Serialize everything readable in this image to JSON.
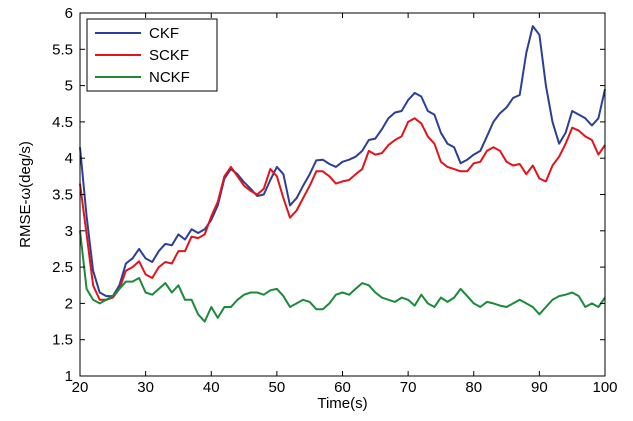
{
  "chart_data": {
    "type": "line",
    "xlabel": "Time(s)",
    "ylabel": "RMSE-ω(deg/s)",
    "xlim": [
      20,
      100
    ],
    "ylim": [
      1,
      6
    ],
    "xticks": [
      20,
      30,
      40,
      50,
      60,
      70,
      80,
      90,
      100
    ],
    "yticks": [
      1,
      1.5,
      2,
      2.5,
      3,
      3.5,
      4,
      4.5,
      5,
      5.5,
      6
    ],
    "grid": false,
    "legend_position": "top-left",
    "series": [
      {
        "name": "CKF",
        "color": "#2b3f97",
        "x": [
          20,
          21,
          22,
          23,
          24,
          25,
          26,
          27,
          28,
          29,
          30,
          31,
          32,
          33,
          34,
          35,
          36,
          37,
          38,
          39,
          40,
          41,
          42,
          43,
          44,
          45,
          46,
          47,
          48,
          49,
          50,
          51,
          52,
          53,
          54,
          55,
          56,
          57,
          58,
          59,
          60,
          61,
          62,
          63,
          64,
          65,
          66,
          67,
          68,
          69,
          70,
          71,
          72,
          73,
          74,
          75,
          76,
          77,
          78,
          79,
          80,
          81,
          82,
          83,
          84,
          85,
          86,
          87,
          88,
          89,
          90,
          91,
          92,
          93,
          94,
          95,
          96,
          97,
          98,
          99,
          100
        ],
        "values": [
          4.15,
          3.2,
          2.45,
          2.15,
          2.1,
          2.1,
          2.25,
          2.55,
          2.62,
          2.75,
          2.62,
          2.57,
          2.72,
          2.82,
          2.8,
          2.95,
          2.88,
          3.02,
          2.97,
          3.02,
          3.15,
          3.35,
          3.72,
          3.85,
          3.78,
          3.67,
          3.58,
          3.48,
          3.5,
          3.7,
          3.88,
          3.78,
          3.35,
          3.45,
          3.62,
          3.78,
          3.97,
          3.98,
          3.92,
          3.88,
          3.95,
          3.98,
          4.02,
          4.1,
          4.25,
          4.27,
          4.4,
          4.55,
          4.63,
          4.65,
          4.8,
          4.9,
          4.85,
          4.65,
          4.6,
          4.35,
          4.2,
          4.15,
          3.93,
          3.98,
          4.05,
          4.1,
          4.3,
          4.5,
          4.62,
          4.7,
          4.83,
          4.87,
          5.45,
          5.82,
          5.7,
          5.0,
          4.5,
          4.2,
          4.35,
          4.65,
          4.6,
          4.55,
          4.45,
          4.55,
          4.95
        ]
      },
      {
        "name": "SCKF",
        "color": "#e2141b",
        "x": [
          20,
          21,
          22,
          23,
          24,
          25,
          26,
          27,
          28,
          29,
          30,
          31,
          32,
          33,
          34,
          35,
          36,
          37,
          38,
          39,
          40,
          41,
          42,
          43,
          44,
          45,
          46,
          47,
          48,
          49,
          50,
          51,
          52,
          53,
          54,
          55,
          56,
          57,
          58,
          59,
          60,
          61,
          62,
          63,
          64,
          65,
          66,
          67,
          68,
          69,
          70,
          71,
          72,
          73,
          74,
          75,
          76,
          77,
          78,
          79,
          80,
          81,
          82,
          83,
          84,
          85,
          86,
          87,
          88,
          89,
          90,
          91,
          92,
          93,
          94,
          95,
          96,
          97,
          98,
          99,
          100
        ],
        "values": [
          3.65,
          2.95,
          2.25,
          2.05,
          2.05,
          2.08,
          2.2,
          2.45,
          2.5,
          2.58,
          2.4,
          2.35,
          2.5,
          2.57,
          2.55,
          2.72,
          2.72,
          2.92,
          2.9,
          2.95,
          3.2,
          3.4,
          3.75,
          3.88,
          3.75,
          3.62,
          3.55,
          3.5,
          3.58,
          3.85,
          3.75,
          3.45,
          3.18,
          3.28,
          3.45,
          3.62,
          3.82,
          3.82,
          3.75,
          3.65,
          3.68,
          3.7,
          3.78,
          3.85,
          4.1,
          4.05,
          4.07,
          4.18,
          4.25,
          4.3,
          4.5,
          4.55,
          4.48,
          4.3,
          4.2,
          3.95,
          3.88,
          3.85,
          3.82,
          3.82,
          3.93,
          3.95,
          4.1,
          4.15,
          4.1,
          3.95,
          3.9,
          3.92,
          3.78,
          3.9,
          3.72,
          3.68,
          3.9,
          4.02,
          4.2,
          4.42,
          4.38,
          4.3,
          4.25,
          4.05,
          4.18
        ]
      },
      {
        "name": "NCKF",
        "color": "#1b8a3a",
        "x": [
          20,
          21,
          22,
          23,
          24,
          25,
          26,
          27,
          28,
          29,
          30,
          31,
          32,
          33,
          34,
          35,
          36,
          37,
          38,
          39,
          40,
          41,
          42,
          43,
          44,
          45,
          46,
          47,
          48,
          49,
          50,
          51,
          52,
          53,
          54,
          55,
          56,
          57,
          58,
          59,
          60,
          61,
          62,
          63,
          64,
          65,
          66,
          67,
          68,
          69,
          70,
          71,
          72,
          73,
          74,
          75,
          76,
          77,
          78,
          79,
          80,
          81,
          82,
          83,
          84,
          85,
          86,
          87,
          88,
          89,
          90,
          91,
          92,
          93,
          94,
          95,
          96,
          97,
          98,
          99,
          100
        ],
        "values": [
          3.0,
          2.2,
          2.05,
          2.0,
          2.05,
          2.1,
          2.2,
          2.3,
          2.3,
          2.35,
          2.15,
          2.12,
          2.2,
          2.28,
          2.15,
          2.25,
          2.05,
          2.05,
          1.85,
          1.75,
          1.95,
          1.8,
          1.95,
          1.95,
          2.05,
          2.12,
          2.15,
          2.15,
          2.12,
          2.18,
          2.2,
          2.1,
          1.95,
          2.0,
          2.05,
          2.02,
          1.92,
          1.92,
          2.0,
          2.12,
          2.15,
          2.12,
          2.2,
          2.28,
          2.25,
          2.15,
          2.08,
          2.05,
          2.02,
          2.08,
          2.05,
          1.97,
          2.12,
          2.0,
          1.95,
          2.08,
          2.02,
          2.08,
          2.2,
          2.1,
          2.0,
          1.95,
          2.02,
          2.0,
          1.97,
          1.95,
          2.0,
          2.05,
          2.0,
          1.95,
          1.85,
          1.95,
          2.05,
          2.1,
          2.12,
          2.15,
          2.1,
          1.95,
          2.0,
          1.95,
          2.08
        ]
      }
    ]
  }
}
